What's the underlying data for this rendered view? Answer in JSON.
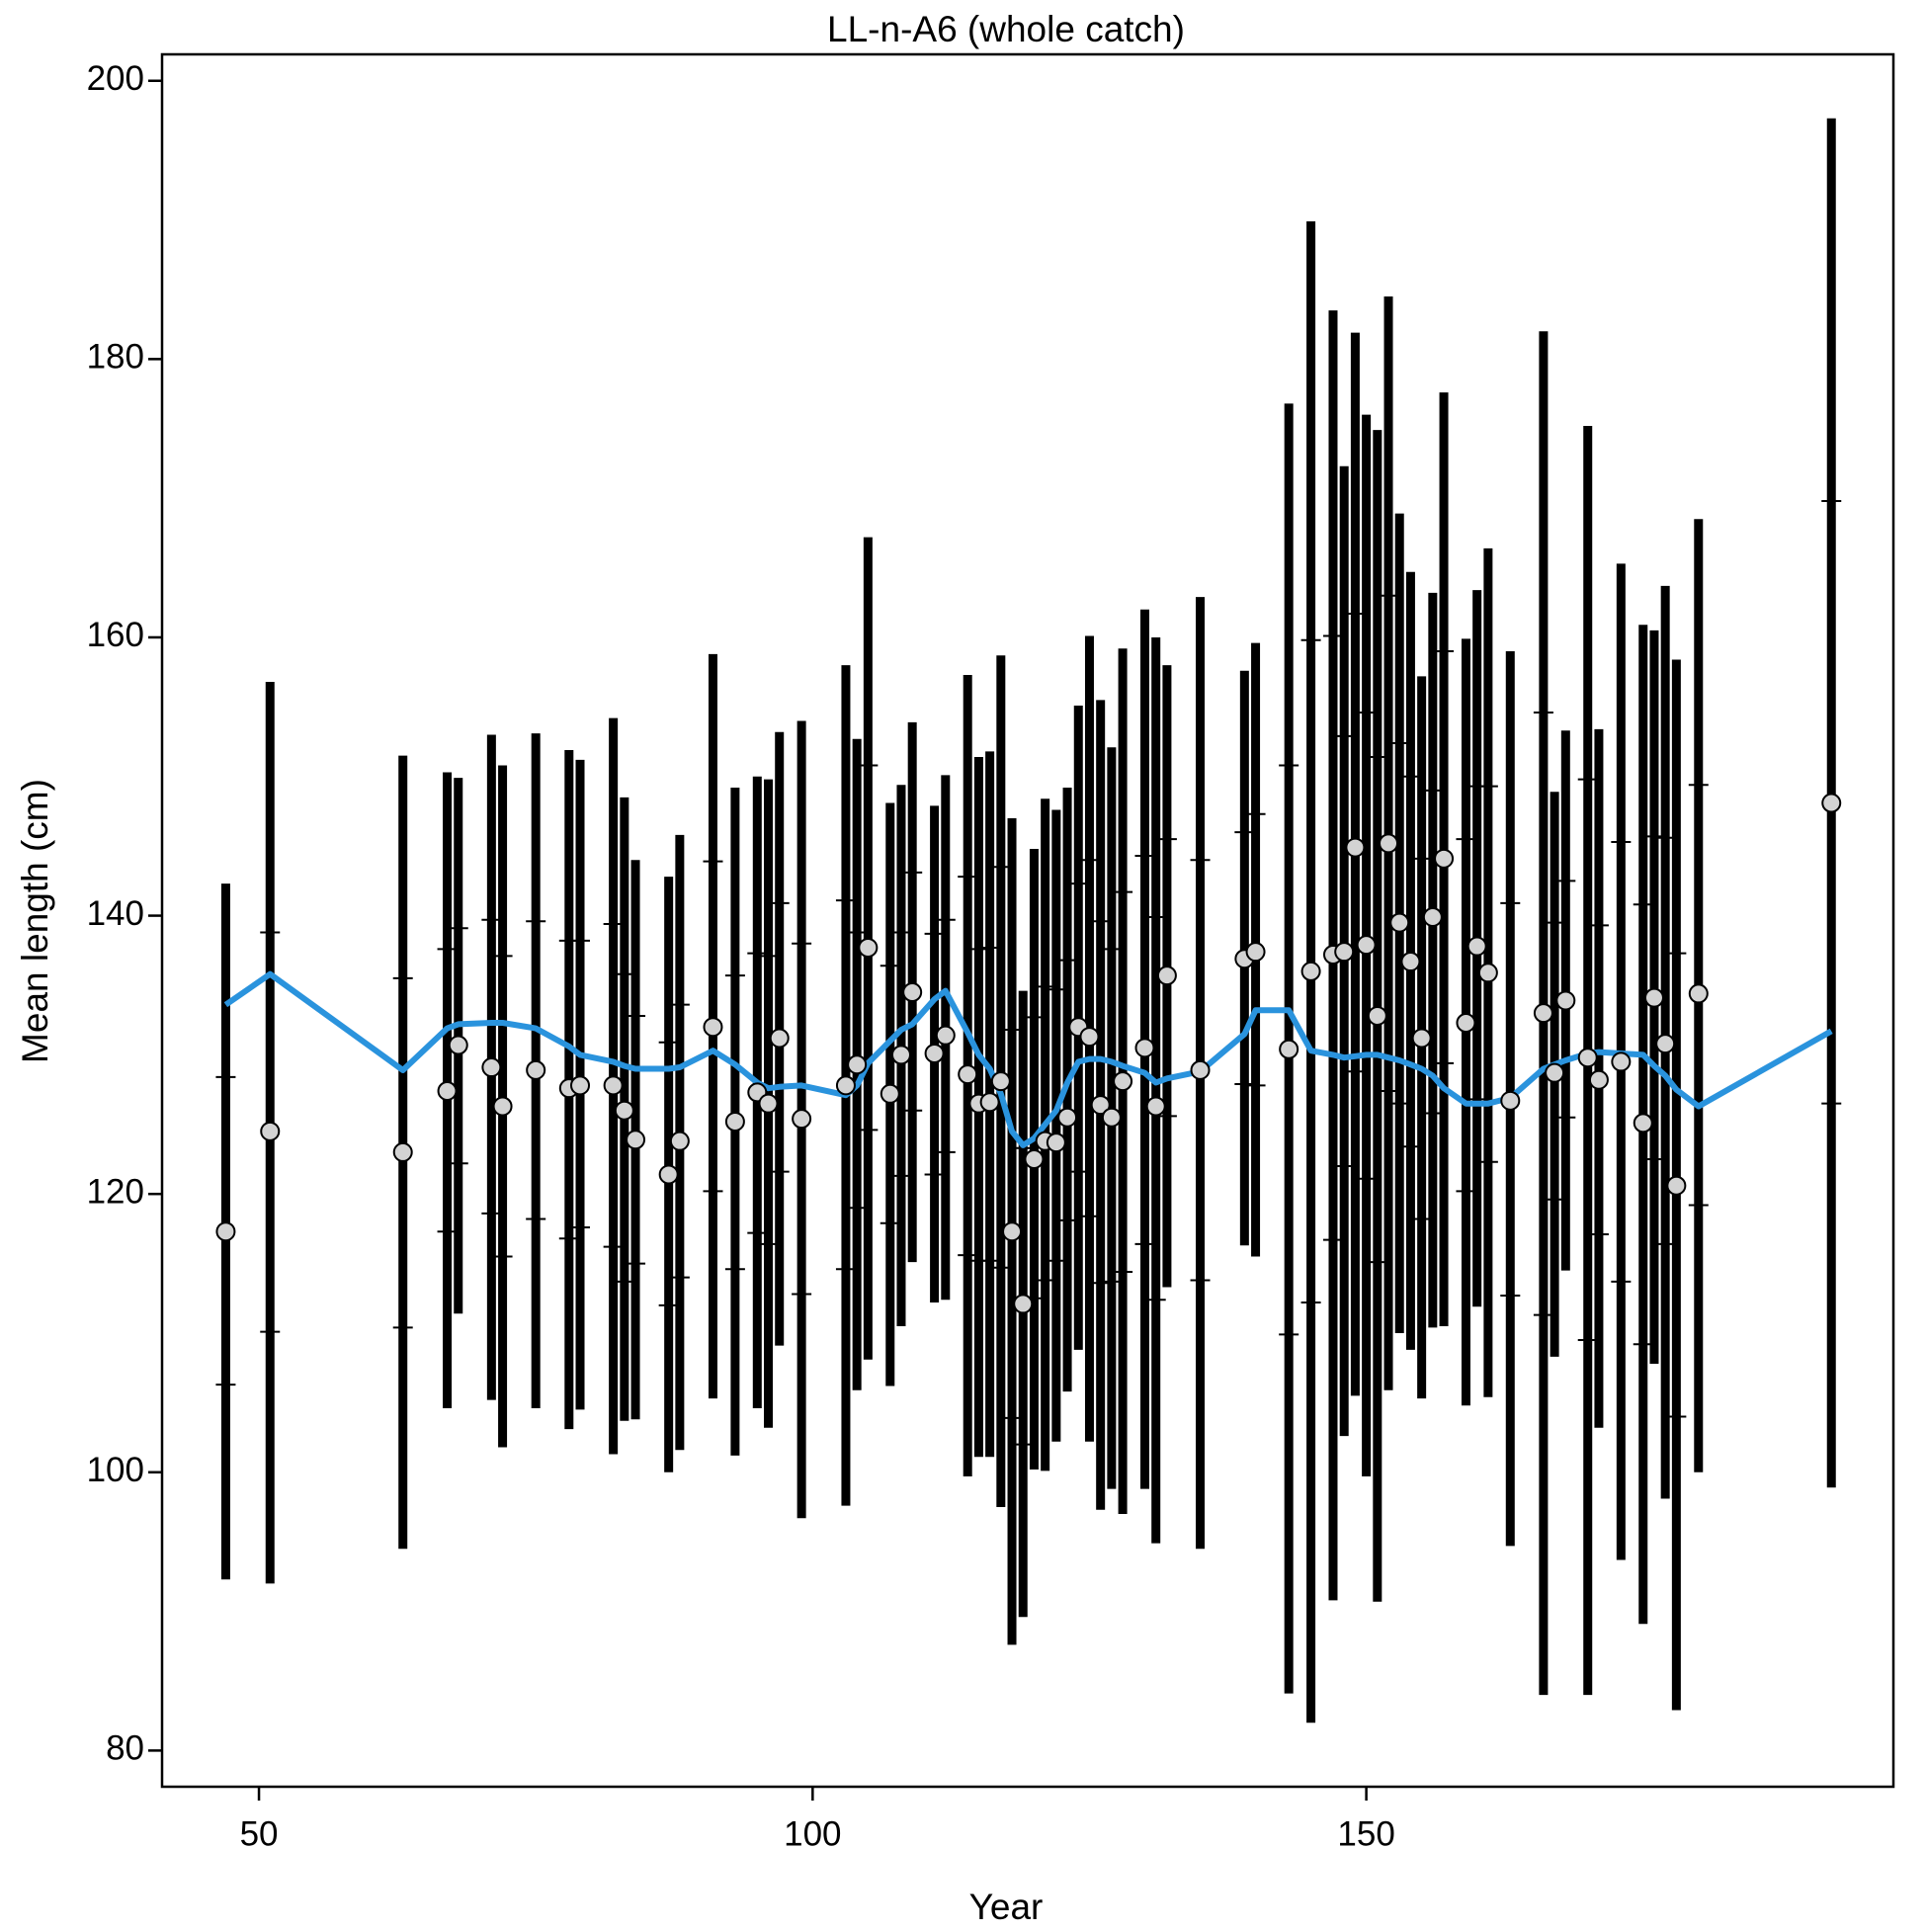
{
  "chart_data": {
    "type": "errorbar",
    "title": "LL-n-A6 (whole catch)",
    "x_label": "Year",
    "y_label": "Mean length (cm)",
    "xlim": [
      41.25,
      197.6
    ],
    "ylim": [
      77.4,
      201.9
    ],
    "xticks": [
      50,
      100,
      150
    ],
    "yticks": [
      80,
      100,
      120,
      140,
      160,
      180,
      200
    ],
    "bar_color": "#000000",
    "point_color": "#d3d3d3",
    "line_color": "#2a93dd",
    "x": [
      47,
      51,
      63,
      67,
      68,
      71,
      72,
      75,
      78,
      79,
      82,
      83,
      84,
      87,
      88,
      91,
      93,
      95,
      96,
      97,
      99,
      103,
      104,
      105,
      107,
      108,
      109,
      111,
      112,
      114,
      115,
      116,
      117,
      118,
      119,
      120,
      121,
      122,
      123,
      124,
      125,
      126,
      127,
      128,
      130,
      131,
      132,
      135,
      139,
      140,
      143,
      145,
      147,
      148,
      149,
      150,
      151,
      152,
      153,
      154,
      155,
      156,
      157,
      159,
      160,
      161,
      163,
      166,
      167,
      168,
      170,
      171,
      173,
      175,
      176,
      177,
      178,
      180,
      192
    ],
    "observed": [
      117.3,
      124.5,
      123.0,
      127.4,
      130.7,
      129.1,
      126.3,
      128.9,
      127.6,
      127.8,
      127.8,
      126.0,
      123.9,
      121.4,
      123.8,
      132.0,
      125.2,
      127.3,
      126.5,
      131.2,
      125.4,
      127.8,
      129.3,
      137.7,
      127.2,
      130.0,
      134.5,
      130.1,
      131.4,
      128.6,
      126.5,
      126.6,
      128.1,
      117.3,
      112.1,
      122.5,
      123.8,
      123.7,
      125.5,
      132.0,
      131.3,
      126.4,
      125.5,
      128.1,
      130.5,
      126.3,
      135.7,
      128.9,
      136.9,
      137.4,
      130.4,
      136.0,
      137.2,
      137.4,
      144.9,
      137.9,
      132.8,
      145.2,
      139.5,
      136.7,
      131.2,
      139.9,
      144.1,
      132.3,
      137.8,
      135.9,
      126.7,
      133.0,
      128.7,
      133.9,
      129.8,
      128.2,
      129.5,
      125.1,
      134.1,
      130.8,
      120.6,
      134.4,
      148.1
    ],
    "upper": [
      142.3,
      156.8,
      151.5,
      150.3,
      149.9,
      153.0,
      150.8,
      153.1,
      151.9,
      151.2,
      154.2,
      148.5,
      144.0,
      142.8,
      145.8,
      158.8,
      149.2,
      150.0,
      149.8,
      153.2,
      154.0,
      158.0,
      152.7,
      167.2,
      148.1,
      149.4,
      153.9,
      147.9,
      150.1,
      157.3,
      151.4,
      151.8,
      158.7,
      147.0,
      134.6,
      144.8,
      148.4,
      147.6,
      149.2,
      155.1,
      160.1,
      155.5,
      152.1,
      159.2,
      162.0,
      160.0,
      158.0,
      162.9,
      157.6,
      159.6,
      176.8,
      189.9,
      183.5,
      172.3,
      181.9,
      176.0,
      174.9,
      184.5,
      168.9,
      164.7,
      157.2,
      163.2,
      177.6,
      159.9,
      163.4,
      166.4,
      159.0,
      182.0,
      148.9,
      153.3,
      175.2,
      153.4,
      165.3,
      160.9,
      160.5,
      163.7,
      158.4,
      168.5,
      197.3
    ],
    "lower": [
      92.3,
      92.0,
      94.5,
      104.6,
      111.4,
      105.2,
      101.8,
      104.6,
      103.1,
      104.5,
      101.3,
      103.7,
      103.8,
      100.0,
      101.6,
      105.3,
      101.2,
      104.6,
      103.2,
      109.1,
      96.7,
      97.6,
      105.9,
      108.1,
      106.2,
      110.5,
      115.1,
      112.2,
      112.4,
      99.7,
      101.1,
      101.1,
      97.5,
      87.6,
      89.6,
      100.2,
      100.1,
      102.2,
      105.8,
      108.8,
      102.2,
      97.3,
      98.8,
      97.0,
      98.8,
      94.9,
      113.3,
      94.5,
      116.3,
      115.5,
      84.1,
      82.0,
      90.8,
      102.6,
      105.5,
      99.7,
      90.7,
      105.9,
      110.0,
      108.8,
      105.3,
      110.4,
      110.5,
      104.8,
      111.9,
      105.4,
      94.7,
      84.0,
      108.3,
      114.5,
      84.0,
      103.2,
      93.7,
      89.1,
      107.8,
      98.1,
      82.9,
      100.0,
      98.9
    ],
    "inner_upper": [
      128.4,
      138.8,
      135.5,
      137.6,
      139.1,
      139.7,
      137.1,
      139.6,
      138.2,
      138.2,
      139.4,
      135.8,
      132.8,
      130.9,
      133.6,
      143.9,
      135.7,
      137.3,
      137.1,
      140.9,
      138.0,
      141.1,
      138.8,
      150.8,
      136.4,
      138.8,
      143.1,
      138.7,
      139.7,
      142.8,
      137.6,
      137.7,
      143.5,
      131.8,
      123.3,
      132.7,
      134.9,
      134.7,
      136.8,
      142.3,
      144.0,
      139.6,
      137.6,
      141.7,
      144.3,
      139.9,
      145.5,
      144.0,
      146.0,
      147.3,
      150.8,
      159.8,
      160.1,
      152.9,
      161.7,
      154.6,
      151.4,
      163.0,
      152.4,
      150.0,
      144.1,
      149.0,
      159.0,
      145.5,
      149.3,
      149.3,
      140.9,
      154.6,
      139.5,
      142.5,
      149.8,
      139.3,
      145.3,
      140.8,
      145.7,
      145.6,
      137.3,
      149.4,
      169.8
    ],
    "inner_lower": [
      106.3,
      110.1,
      110.4,
      117.3,
      122.2,
      118.6,
      115.5,
      118.2,
      116.8,
      117.6,
      116.2,
      113.7,
      115.0,
      112.0,
      114.0,
      120.2,
      114.6,
      117.2,
      116.4,
      121.6,
      112.8,
      114.6,
      119.0,
      124.6,
      117.9,
      121.3,
      126.0,
      121.4,
      123.0,
      115.6,
      115.2,
      115.2,
      114.7,
      103.9,
      102.0,
      112.5,
      113.8,
      115.2,
      118.1,
      121.6,
      118.4,
      113.6,
      113.7,
      114.4,
      116.4,
      112.4,
      125.6,
      113.8,
      127.9,
      127.8,
      109.9,
      112.2,
      116.7,
      122.0,
      128.8,
      121.1,
      115.1,
      127.4,
      126.5,
      123.4,
      118.2,
      125.8,
      129.4,
      120.2,
      126.8,
      122.3,
      112.7,
      111.3,
      119.6,
      125.5,
      109.5,
      117.1,
      113.7,
      109.2,
      122.5,
      116.4,
      104.0,
      119.2,
      126.5
    ],
    "expected": [
      133.6,
      135.8,
      128.9,
      131.9,
      132.2,
      132.3,
      132.3,
      131.9,
      130.6,
      130.0,
      129.5,
      129.2,
      129.0,
      129.0,
      129.1,
      130.3,
      129.3,
      128.0,
      127.6,
      127.7,
      127.8,
      127.1,
      127.8,
      129.4,
      131.0,
      131.8,
      132.2,
      134.0,
      134.6,
      131.6,
      130.0,
      129.0,
      127.2,
      124.5,
      123.5,
      124.0,
      125.0,
      126.0,
      128.0,
      129.5,
      129.7,
      129.7,
      129.5,
      129.2,
      128.7,
      128.0,
      128.3,
      128.8,
      131.5,
      133.2,
      133.2,
      130.3,
      130.0,
      129.8,
      129.9,
      130.0,
      130.0,
      129.8,
      129.6,
      129.3,
      129.0,
      128.5,
      127.6,
      126.5,
      126.5,
      126.5,
      126.9,
      129.0,
      129.3,
      129.6,
      130.1,
      130.2,
      130.1,
      130.0,
      129.2,
      128.5,
      127.5,
      126.3,
      131.7
    ]
  }
}
